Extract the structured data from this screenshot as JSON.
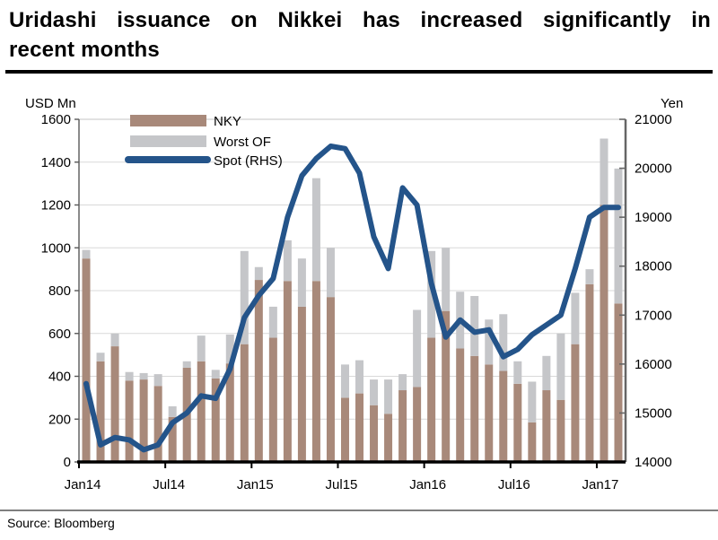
{
  "title": {
    "line1": "Uridashi issuance on Nikkei has increased significantly in",
    "line2": "recent months"
  },
  "source": {
    "text": "Source: Bloomberg"
  },
  "chart_data": {
    "type": "combo-stacked-bar-line",
    "title": "Uridashi issuance on Nikkei",
    "x": [
      "Jan14",
      "Feb14",
      "Mar14",
      "Apr14",
      "May14",
      "Jun14",
      "Jul14",
      "Aug14",
      "Sep14",
      "Oct14",
      "Nov14",
      "Dec14",
      "Jan15",
      "Feb15",
      "Mar15",
      "Apr15",
      "May15",
      "Jun15",
      "Jul15",
      "Aug15",
      "Sep15",
      "Oct15",
      "Nov15",
      "Dec15",
      "Jan16",
      "Feb16",
      "Mar16",
      "Apr16",
      "May16",
      "Jun16",
      "Jul16",
      "Aug16",
      "Sep16",
      "Oct16",
      "Nov16",
      "Dec16",
      "Jan17",
      "Feb17"
    ],
    "x_tick_labels": [
      "Jan14",
      "Jul14",
      "Jan15",
      "Jul15",
      "Jan16",
      "Jul16",
      "Jan17"
    ],
    "x_tick_indices": [
      0,
      6,
      12,
      18,
      24,
      30,
      36
    ],
    "left_axis": {
      "label": "USD Mn",
      "min": 0,
      "max": 1600,
      "step": 200
    },
    "right_axis": {
      "label": "Yen",
      "min": 14000,
      "max": 21000,
      "step": 1000
    },
    "grid": true,
    "legend_position": "top-left-inside",
    "series": [
      {
        "name": "NKY",
        "type": "bar",
        "stack": true,
        "axis": "left",
        "color": "#a8897a",
        "values": [
          950,
          470,
          540,
          380,
          385,
          355,
          210,
          440,
          470,
          390,
          460,
          550,
          850,
          580,
          845,
          725,
          845,
          770,
          300,
          320,
          265,
          225,
          335,
          350,
          580,
          705,
          530,
          495,
          455,
          425,
          365,
          185,
          335,
          290,
          550,
          830,
          1200,
          740
        ]
      },
      {
        "name": "Worst OF",
        "type": "bar",
        "stack": true,
        "axis": "left",
        "color": "#c5c6c9",
        "values": [
          40,
          40,
          60,
          40,
          30,
          55,
          50,
          30,
          120,
          40,
          135,
          435,
          60,
          145,
          190,
          225,
          480,
          230,
          155,
          155,
          120,
          160,
          75,
          360,
          405,
          295,
          265,
          280,
          210,
          265,
          105,
          190,
          160,
          310,
          240,
          70,
          310,
          630
        ]
      },
      {
        "name": "Spot (RHS)",
        "type": "line",
        "axis": "right",
        "color": "#24548a",
        "values": [
          15600,
          14350,
          14500,
          14450,
          14250,
          14350,
          14800,
          15000,
          15350,
          15300,
          15900,
          16950,
          17400,
          17750,
          19000,
          19850,
          20200,
          20450,
          20400,
          19900,
          18600,
          17950,
          19600,
          19250,
          17650,
          16550,
          16900,
          16650,
          16700,
          16150,
          16300,
          16600,
          16800,
          17000,
          17950,
          19000,
          19200,
          19200
        ]
      }
    ],
    "colors": {
      "grid": "#d9d9d9",
      "left_spine": "#595959",
      "right_spine": "#666666",
      "bottom_axis": "#000000",
      "top_spine": "#c6c6c6"
    }
  }
}
